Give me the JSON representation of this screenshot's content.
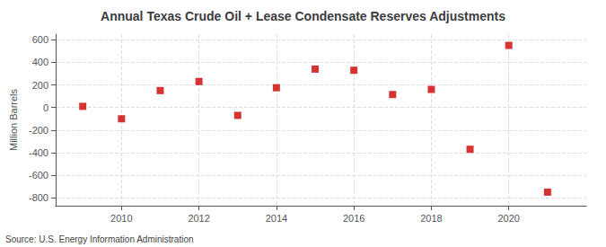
{
  "chart_data": {
    "type": "scatter",
    "title": "Annual Texas Crude Oil + Lease Condensate Reserves Adjustments",
    "ylabel": "Million Barrels",
    "source": "Source: U.S. Energy Information Administration",
    "x": [
      2009,
      2010,
      2011,
      2012,
      2013,
      2014,
      2015,
      2016,
      2017,
      2018,
      2019,
      2020,
      2021
    ],
    "values": [
      10,
      -100,
      150,
      230,
      -70,
      175,
      340,
      330,
      115,
      160,
      -370,
      550,
      -750
    ],
    "color": "#cc0000",
    "marker": "square",
    "xlim": [
      2008.3,
      2022.0
    ],
    "xticks": [
      2010,
      2012,
      2014,
      2016,
      2018,
      2020
    ],
    "ylim": [
      -870,
      650
    ],
    "yticks": [
      -800,
      -600,
      -400,
      -200,
      0,
      200,
      400,
      600
    ],
    "grid": true
  }
}
